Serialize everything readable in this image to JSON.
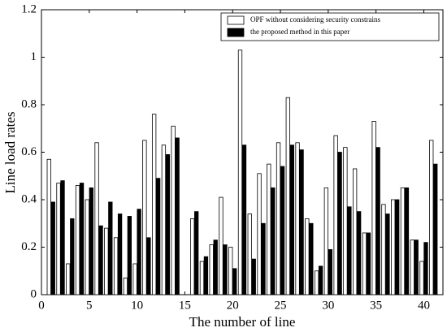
{
  "chart_data": {
    "type": "bar",
    "xlabel": "The number of line",
    "ylabel": "Line load rates",
    "x": [
      1,
      2,
      3,
      4,
      5,
      6,
      7,
      8,
      9,
      10,
      11,
      12,
      13,
      14,
      15,
      16,
      17,
      18,
      19,
      20,
      21,
      22,
      23,
      24,
      25,
      26,
      27,
      28,
      29,
      30,
      31,
      32,
      33,
      34,
      35,
      36,
      37,
      38,
      39,
      40,
      41
    ],
    "series": [
      {
        "name": "OPF without considering security constrains",
        "color": "#ffffff",
        "values": [
          0.57,
          0.47,
          0.13,
          0.46,
          0.4,
          0.64,
          0.28,
          0.24,
          0.07,
          0.13,
          0.65,
          0.76,
          0.63,
          0.71,
          0,
          0.32,
          0.14,
          0.21,
          0.41,
          0.2,
          1.03,
          0.34,
          0.51,
          0.55,
          0.64,
          0.83,
          0.64,
          0.32,
          0.1,
          0.45,
          0.67,
          0.62,
          0.53,
          0.26,
          0.73,
          0.38,
          0.4,
          0.45,
          0.23,
          0.14,
          0.65
        ]
      },
      {
        "name": "the proposed method in this paper",
        "color": "#000000",
        "values": [
          0.39,
          0.48,
          0.32,
          0.47,
          0.45,
          0.29,
          0.39,
          0.34,
          0.33,
          0.36,
          0.24,
          0.49,
          0.59,
          0.66,
          0,
          0.35,
          0.16,
          0.23,
          0.21,
          0.11,
          0.63,
          0.15,
          0.3,
          0.45,
          0.54,
          0.63,
          0.61,
          0.3,
          0.12,
          0.19,
          0.6,
          0.37,
          0.35,
          0.26,
          0.62,
          0.34,
          0.4,
          0.45,
          0.23,
          0.22,
          0.55
        ]
      }
    ],
    "xlim": [
      0,
      42
    ],
    "xticks": [
      0,
      5,
      10,
      15,
      20,
      25,
      30,
      35,
      40
    ],
    "ylim": [
      0,
      1.2
    ],
    "yticks": [
      0,
      0.2,
      0.4,
      0.6,
      0.8,
      1,
      1.2
    ],
    "legend": "upper right"
  }
}
